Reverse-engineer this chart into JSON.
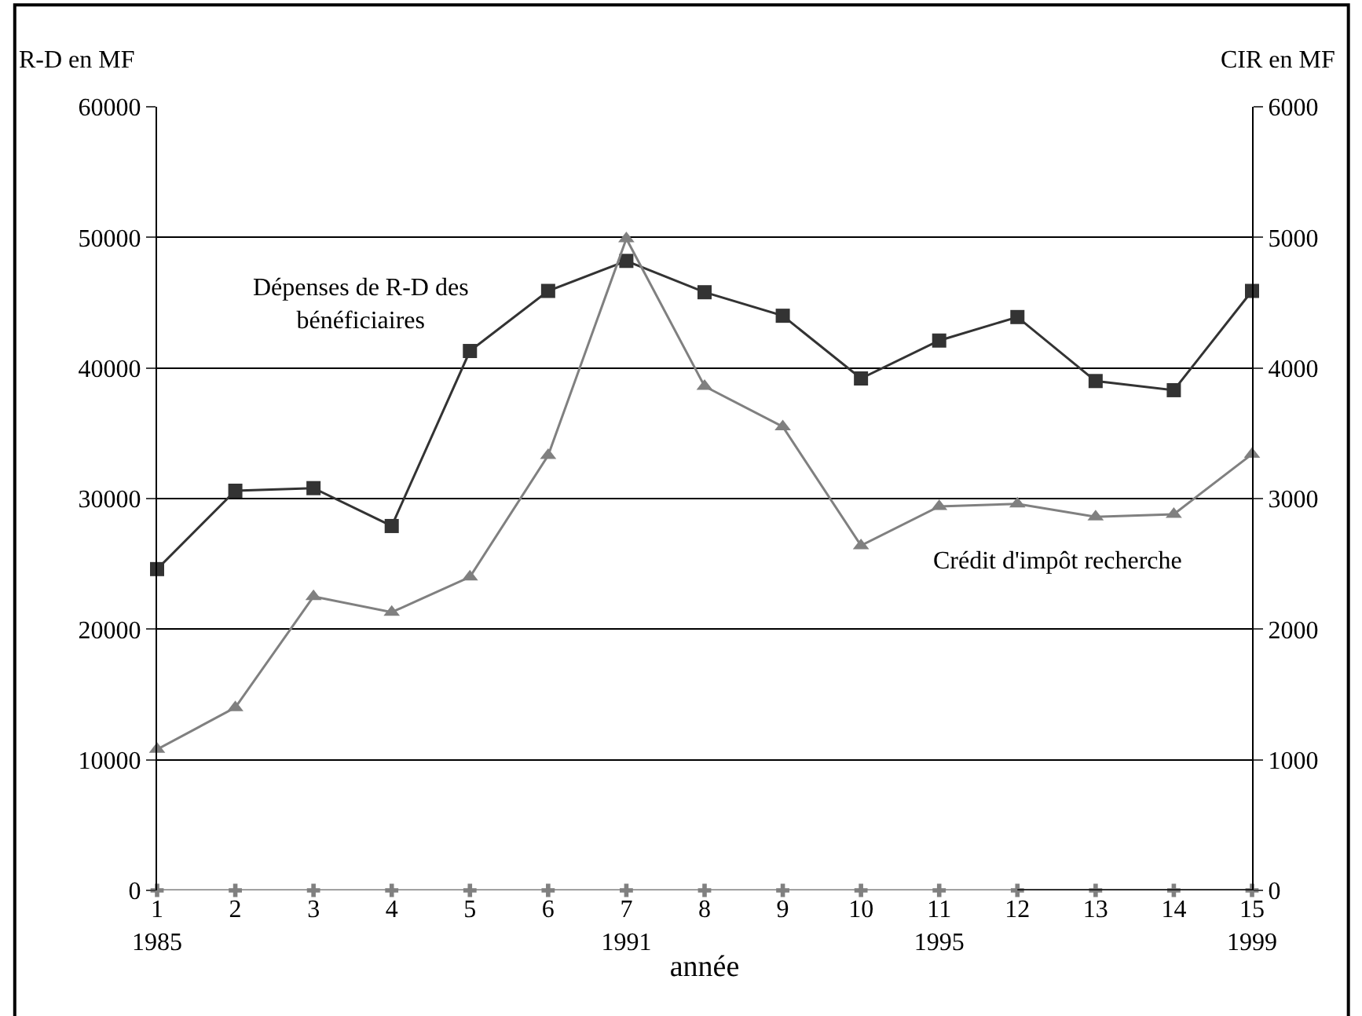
{
  "chart_data": {
    "type": "line",
    "xlabel": "année",
    "ylabel": "R-D en MF",
    "y2label": "CIR en MF",
    "categories": [
      "1\n1985",
      "2",
      "3",
      "4",
      "5",
      "6",
      "7\n1991",
      "8",
      "9",
      "10",
      "11\n1995",
      "12",
      "13",
      "14",
      "15\n1999"
    ],
    "series": [
      {
        "name": "Dépenses de R-D des bénéficiaires",
        "color": "#333333",
        "marker": "square",
        "values": [
          24600,
          30600,
          30800,
          27900,
          41300,
          45900,
          48200,
          45800,
          44000,
          39200,
          42100,
          43900,
          39000,
          38300,
          45900
        ]
      },
      {
        "name": "Crédit d'impôt recherche",
        "color": "#808080",
        "marker": "triangle",
        "axis": "y2",
        "values": [
          1080,
          1400,
          2250,
          2130,
          2400,
          3330,
          4990,
          3860,
          3550,
          2640,
          2940,
          2960,
          2860,
          2880,
          3340
        ]
      },
      {
        "color": "#808080",
        "marker": "cross",
        "values": [
          0,
          0,
          0,
          0,
          0,
          0,
          0,
          0,
          0,
          0,
          0,
          0,
          0,
          0,
          0
        ]
      },
      {
        "color": "#000000",
        "marker": "none",
        "values": [
          null,
          null,
          null,
          null,
          null,
          null,
          null,
          null,
          null,
          null,
          null,
          0,
          0,
          0,
          0
        ]
      }
    ],
    "ylim": [
      0,
      60000
    ],
    "yticks": [
      0,
      10000,
      20000,
      30000,
      40000,
      50000,
      60000
    ],
    "y2lim": [
      0,
      6000
    ],
    "y2ticks": [
      0,
      1000,
      2000,
      3000,
      4000,
      5000,
      6000
    ],
    "grid": "y",
    "legend": false
  }
}
